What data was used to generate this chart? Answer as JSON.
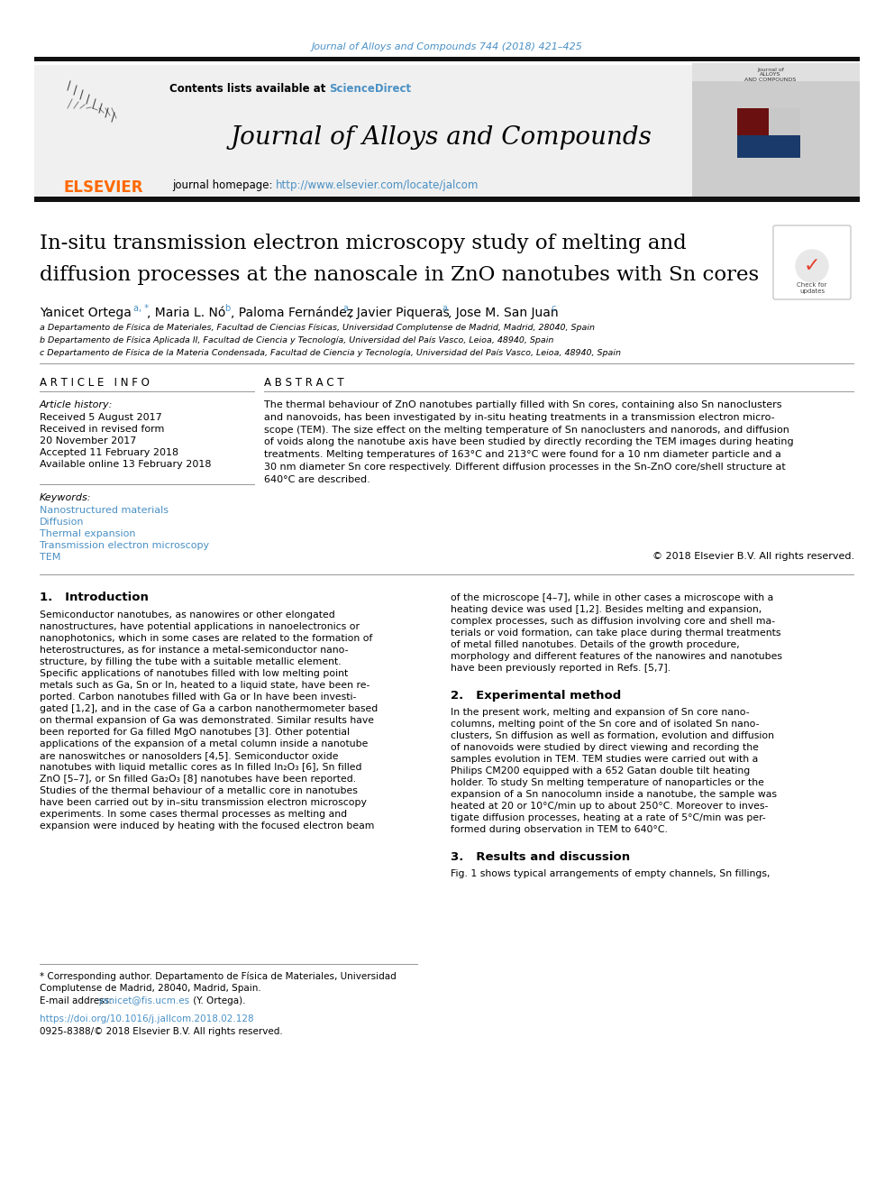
{
  "journal_ref": "Journal of Alloys and Compounds 744 (2018) 421–425",
  "journal_name": "Journal of Alloys and Compounds",
  "contents_text": "Contents lists available at ",
  "sciencedirect": "ScienceDirect",
  "homepage_text": "journal homepage: ",
  "homepage_url": "http://www.elsevier.com/locate/jalcom",
  "title_line1": "In-situ transmission electron microscopy study of melting and",
  "title_line2": "diffusion processes at the nanoscale in ZnO nanotubes with Sn cores",
  "affil_a": "a Departamento de Física de Materiales, Facultad de Ciencias Físicas, Universidad Complutense de Madrid, Madrid, 28040, Spain",
  "affil_b": "b Departamento de Física Aplicada II, Facultad de Ciencia y Tecnología, Universidad del País Vasco, Leioa, 48940, Spain",
  "affil_c": "c Departamento de Física de la Materia Condensada, Facultad de Ciencia y Tecnología, Universidad del País Vasco, Leioa, 48940, Spain",
  "article_info_header": "A R T I C L E   I N F O",
  "abstract_header": "A B S T R A C T",
  "article_history": "Article history:",
  "received": "Received 5 August 2017",
  "revised": "Received in revised form",
  "revised2": "20 November 2017",
  "accepted": "Accepted 11 February 2018",
  "available": "Available online 13 February 2018",
  "keywords_header": "Keywords:",
  "kw1": "Nanostructured materials",
  "kw2": "Diffusion",
  "kw3": "Thermal expansion",
  "kw4": "Transmission electron microscopy",
  "kw5": "TEM",
  "abstract_lines": [
    "The thermal behaviour of ZnO nanotubes partially filled with Sn cores, containing also Sn nanoclusters",
    "and nanovoids, has been investigated by in-situ heating treatments in a transmission electron micro-",
    "scope (TEM). The size effect on the melting temperature of Sn nanoclusters and nanorods, and diffusion",
    "of voids along the nanotube axis have been studied by directly recording the TEM images during heating",
    "treatments. Melting temperatures of 163°C and 213°C were found for a 10 nm diameter particle and a",
    "30 nm diameter Sn core respectively. Different diffusion processes in the Sn-ZnO core/shell structure at",
    "640°C are described."
  ],
  "abstract_italic_word": "in-situ",
  "copyright": "© 2018 Elsevier B.V. All rights reserved.",
  "intro_header": "1.   Introduction",
  "intro_col1_lines": [
    "Semiconductor nanotubes, as nanowires or other elongated",
    "nanostructures, have potential applications in nanoelectronics or",
    "nanophotonics, which in some cases are related to the formation of",
    "heterostructures, as for instance a metal-semiconductor nano-",
    "structure, by filling the tube with a suitable metallic element.",
    "Specific applications of nanotubes filled with low melting point",
    "metals such as Ga, Sn or In, heated to a liquid state, have been re-",
    "ported. Carbon nanotubes filled with Ga or In have been investi-",
    "gated [1,2], and in the case of Ga a carbon nanothermometer based",
    "on thermal expansion of Ga was demonstrated. Similar results have",
    "been reported for Ga filled MgO nanotubes [3]. Other potential",
    "applications of the expansion of a metal column inside a nanotube",
    "are nanoswitches or nanosolders [4,5]. Semiconductor oxide",
    "nanotubes with liquid metallic cores as In filled In₂O₃ [6], Sn filled",
    "ZnO [5–7], or Sn filled Ga₂O₃ [8] nanotubes have been reported.",
    "Studies of the thermal behaviour of a metallic core in nanotubes",
    "have been carried out by in–situ transmission electron microscopy",
    "experiments. In some cases thermal processes as melting and",
    "expansion were induced by heating with the focused electron beam"
  ],
  "intro_col2_lines": [
    "of the microscope [4–7], while in other cases a microscope with a",
    "heating device was used [1,2]. Besides melting and expansion,",
    "complex processes, such as diffusion involving core and shell ma-",
    "terials or void formation, can take place during thermal treatments",
    "of metal filled nanotubes. Details of the growth procedure,",
    "morphology and different features of the nanowires and nanotubes",
    "have been previously reported in Refs. [5,7]."
  ],
  "exp_header": "2.   Experimental method",
  "exp_lines": [
    "In the present work, melting and expansion of Sn core nano-",
    "columns, melting point of the Sn core and of isolated Sn nano-",
    "clusters, Sn diffusion as well as formation, evolution and diffusion",
    "of nanovoids were studied by direct viewing and recording the",
    "samples evolution in TEM. TEM studies were carried out with a",
    "Philips CM200 equipped with a 652 Gatan double tilt heating",
    "holder. To study Sn melting temperature of nanoparticles or the",
    "expansion of a Sn nanocolumn inside a nanotube, the sample was",
    "heated at 20 or 10°C/min up to about 250°C. Moreover to inves-",
    "tigate diffusion processes, heating at a rate of 5°C/min was per-",
    "formed during observation in TEM to 640°C."
  ],
  "results_header": "3.   Results and discussion",
  "results_line": "Fig. 1 shows typical arrangements of empty channels, Sn fillings,",
  "footnote1": "* Corresponding author. Departamento de Física de Materiales, Universidad",
  "footnote2": "Complutense de Madrid, 28040, Madrid, Spain.",
  "email_label": "E-mail address: ",
  "email_link": "yanicet@fis.ucm.es",
  "email_rest": " (Y. Ortega).",
  "doi": "https://doi.org/10.1016/j.jallcom.2018.02.128",
  "issn": "0925-8388/© 2018 Elsevier B.V. All rights reserved.",
  "elsevier_color": "#FF6A00",
  "link_color": "#4A90C4",
  "bg_header": "#F0F0F0",
  "black_bar": "#111111",
  "separator_color": "#999999"
}
